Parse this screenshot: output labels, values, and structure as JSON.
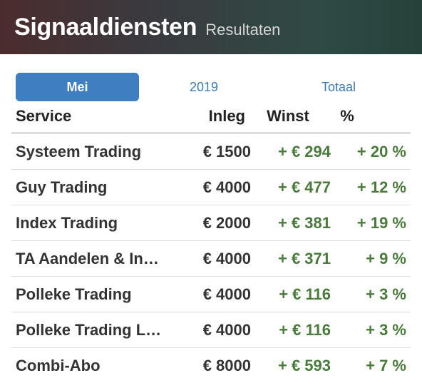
{
  "header": {
    "title": "Signaaldiensten",
    "subtitle": "Resultaten"
  },
  "tabs": [
    {
      "label": "Mei",
      "active": true
    },
    {
      "label": "2019",
      "active": false
    },
    {
      "label": "Totaal",
      "active": false
    }
  ],
  "table": {
    "columns": [
      "Service",
      "Inleg",
      "Winst",
      "%"
    ],
    "rows": [
      {
        "service": "Systeem Trading",
        "inleg": "€ 1500",
        "winst": "+ € 294",
        "pct": "+ 20 %"
      },
      {
        "service": "Guy Trading",
        "inleg": "€ 4000",
        "winst": "+ € 477",
        "pct": "+ 12 %"
      },
      {
        "service": "Index Trading",
        "inleg": "€ 2000",
        "winst": "+ € 381",
        "pct": "+ 19 %"
      },
      {
        "service": "TA Aandelen & In…",
        "inleg": "€ 4000",
        "winst": "+ € 371",
        "pct": "+ 9 %"
      },
      {
        "service": "Polleke Trading",
        "inleg": "€ 4000",
        "winst": "+ € 116",
        "pct": "+ 3 %"
      },
      {
        "service": "Polleke Trading L…",
        "inleg": "€ 4000",
        "winst": "+ € 116",
        "pct": "+ 3 %"
      },
      {
        "service": "Combi-Abo",
        "inleg": "€ 8000",
        "winst": "+ € 593",
        "pct": "+ 7 %"
      }
    ]
  },
  "colors": {
    "accent": "#3f7ec0",
    "gain": "#4a7a3c",
    "text": "#333333"
  }
}
